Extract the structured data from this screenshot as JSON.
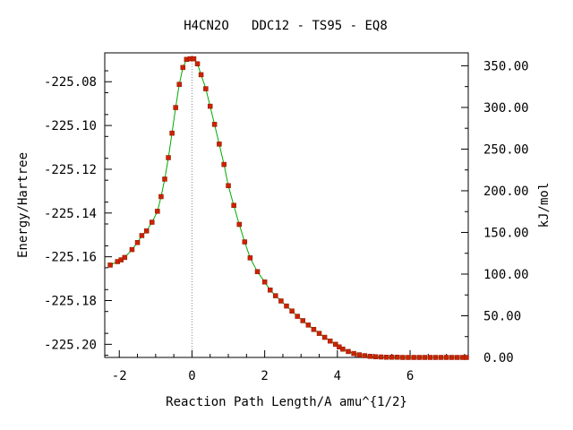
{
  "chart_data": {
    "type": "scatter",
    "title": "H4CN2O   DDC12 - TS95 - EQ8",
    "xlabel": "Reaction Path Length/A amu^{1/2}",
    "ylabel": "Energy/Hartree",
    "y2label": "kJ/mol",
    "xlim": [
      -2.4,
      7.6
    ],
    "ylim": [
      -225.206,
      -225.0668
    ],
    "y2lim": [
      0.0,
      365.5
    ],
    "x_ticks": [
      -2,
      0,
      2,
      4,
      6
    ],
    "x_tick_labels": [
      "-2",
      "0",
      "2",
      "4",
      "6"
    ],
    "y_ticks": [
      -225.08,
      -225.1,
      -225.12,
      -225.14,
      -225.16,
      -225.18,
      -225.2
    ],
    "y_tick_labels": [
      "-225.08",
      "-225.10",
      "-225.12",
      "-225.14",
      "-225.16",
      "-225.18",
      "-225.20"
    ],
    "y2_ticks": [
      0,
      50,
      100,
      150,
      200,
      250,
      300,
      350
    ],
    "y2_tick_labels": [
      "0.00",
      "50.00",
      "100.00",
      "150.00",
      "200.00",
      "250.00",
      "300.00",
      "350.00"
    ],
    "ts_marker_x": 0,
    "grid": false,
    "series": [
      {
        "marker_color": "#cc2200",
        "line_color": "#00aa00",
        "points": [
          [
            -2.25,
            -225.1638
          ],
          [
            -2.05,
            -225.1622
          ],
          [
            -1.95,
            -225.1614
          ],
          [
            -1.85,
            -225.1603
          ],
          [
            -1.65,
            -225.1567
          ],
          [
            -1.5,
            -225.1535
          ],
          [
            -1.38,
            -225.1503
          ],
          [
            -1.25,
            -225.1482
          ],
          [
            -1.1,
            -225.1442
          ],
          [
            -0.95,
            -225.1392
          ],
          [
            -0.85,
            -225.1325
          ],
          [
            -0.75,
            -225.1245
          ],
          [
            -0.65,
            -225.1147
          ],
          [
            -0.55,
            -225.1035
          ],
          [
            -0.45,
            -225.0918
          ],
          [
            -0.35,
            -225.0812
          ],
          [
            -0.25,
            -225.0735
          ],
          [
            -0.15,
            -225.0698
          ],
          [
            -0.05,
            -225.0695
          ],
          [
            0.05,
            -225.0695
          ],
          [
            0.15,
            -225.0718
          ],
          [
            0.25,
            -225.0768
          ],
          [
            0.38,
            -225.0832
          ],
          [
            0.5,
            -225.0912
          ],
          [
            0.62,
            -225.0995
          ],
          [
            0.75,
            -225.1085
          ],
          [
            0.88,
            -225.1178
          ],
          [
            1.0,
            -225.1275
          ],
          [
            1.15,
            -225.1365
          ],
          [
            1.3,
            -225.1452
          ],
          [
            1.45,
            -225.1532
          ],
          [
            1.6,
            -225.1605
          ],
          [
            1.8,
            -225.1668
          ],
          [
            2.0,
            -225.1715
          ],
          [
            2.15,
            -225.1752
          ],
          [
            2.3,
            -225.1778
          ],
          [
            2.45,
            -225.1802
          ],
          [
            2.6,
            -225.1825
          ],
          [
            2.75,
            -225.1848
          ],
          [
            2.9,
            -225.1872
          ],
          [
            3.05,
            -225.1892
          ],
          [
            3.2,
            -225.1912
          ],
          [
            3.35,
            -225.1932
          ],
          [
            3.5,
            -225.195
          ],
          [
            3.65,
            -225.1968
          ],
          [
            3.8,
            -225.1985
          ],
          [
            3.95,
            -225.2
          ],
          [
            4.05,
            -225.2012
          ],
          [
            4.15,
            -225.2022
          ],
          [
            4.3,
            -225.2033
          ],
          [
            4.45,
            -225.2042
          ],
          [
            4.6,
            -225.2048
          ],
          [
            4.75,
            -225.2052
          ],
          [
            4.9,
            -225.2055
          ],
          [
            5.05,
            -225.2057
          ],
          [
            5.2,
            -225.2058
          ],
          [
            5.35,
            -225.2059
          ],
          [
            5.5,
            -225.2059
          ],
          [
            5.65,
            -225.2059
          ],
          [
            5.8,
            -225.206
          ],
          [
            5.95,
            -225.206
          ],
          [
            6.1,
            -225.206
          ],
          [
            6.25,
            -225.206
          ],
          [
            6.4,
            -225.206
          ],
          [
            6.55,
            -225.206
          ],
          [
            6.7,
            -225.206
          ],
          [
            6.85,
            -225.206
          ],
          [
            7.0,
            -225.206
          ],
          [
            7.15,
            -225.206
          ],
          [
            7.3,
            -225.206
          ],
          [
            7.45,
            -225.206
          ],
          [
            7.55,
            -225.206
          ]
        ]
      }
    ]
  }
}
